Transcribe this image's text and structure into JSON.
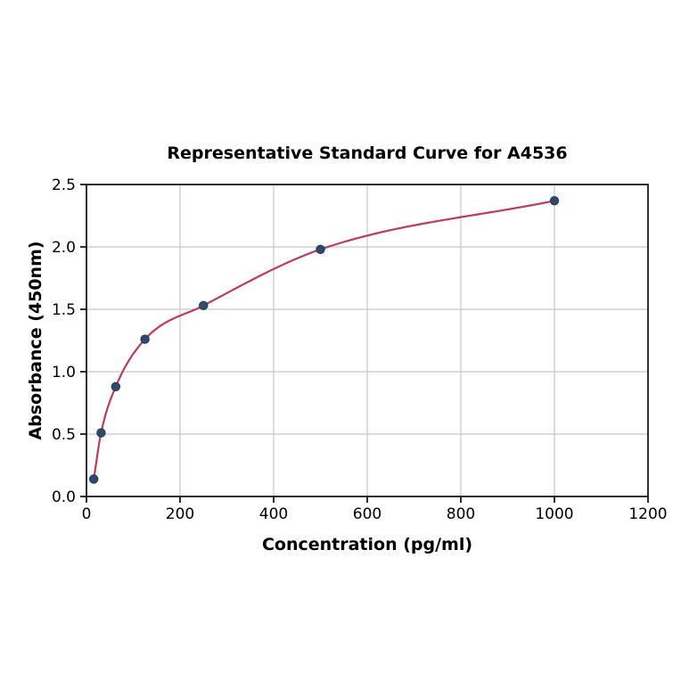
{
  "page": {
    "background": "#ffffff"
  },
  "chart_data": {
    "type": "line",
    "title": "Representative Standard Curve for A4536",
    "xlabel": "Concentration (pg/ml)",
    "ylabel": "Absorbance (450nm)",
    "xlim": [
      0,
      1200
    ],
    "ylim": [
      0,
      2.5
    ],
    "x_ticks": [
      0,
      200,
      400,
      600,
      800,
      1000,
      1200
    ],
    "x_tick_labels": [
      "0",
      "200",
      "400",
      "600",
      "800",
      "1000",
      "1200"
    ],
    "y_ticks": [
      0,
      0.5,
      1,
      1.5,
      2,
      2.5
    ],
    "y_tick_labels": [
      "0.0",
      "0.5",
      "1.0",
      "1.5",
      "2.0",
      "2.5"
    ],
    "grid": true,
    "legend": "none",
    "series": [
      {
        "name": "Standard curve",
        "x": [
          15.6,
          31.25,
          62.5,
          125,
          250,
          500,
          1000
        ],
        "y": [
          0.14,
          0.51,
          0.88,
          1.26,
          1.53,
          1.98,
          2.37
        ],
        "line_color": "#c13a5e",
        "marker": "circle",
        "marker_color": "#2e4b6e",
        "marker_edge_color": "#1f3a57"
      }
    ],
    "colors": {
      "grid": "#c8c8c8",
      "spine": "#1a1a1a",
      "text": "#000000",
      "background": "#ffffff"
    }
  }
}
